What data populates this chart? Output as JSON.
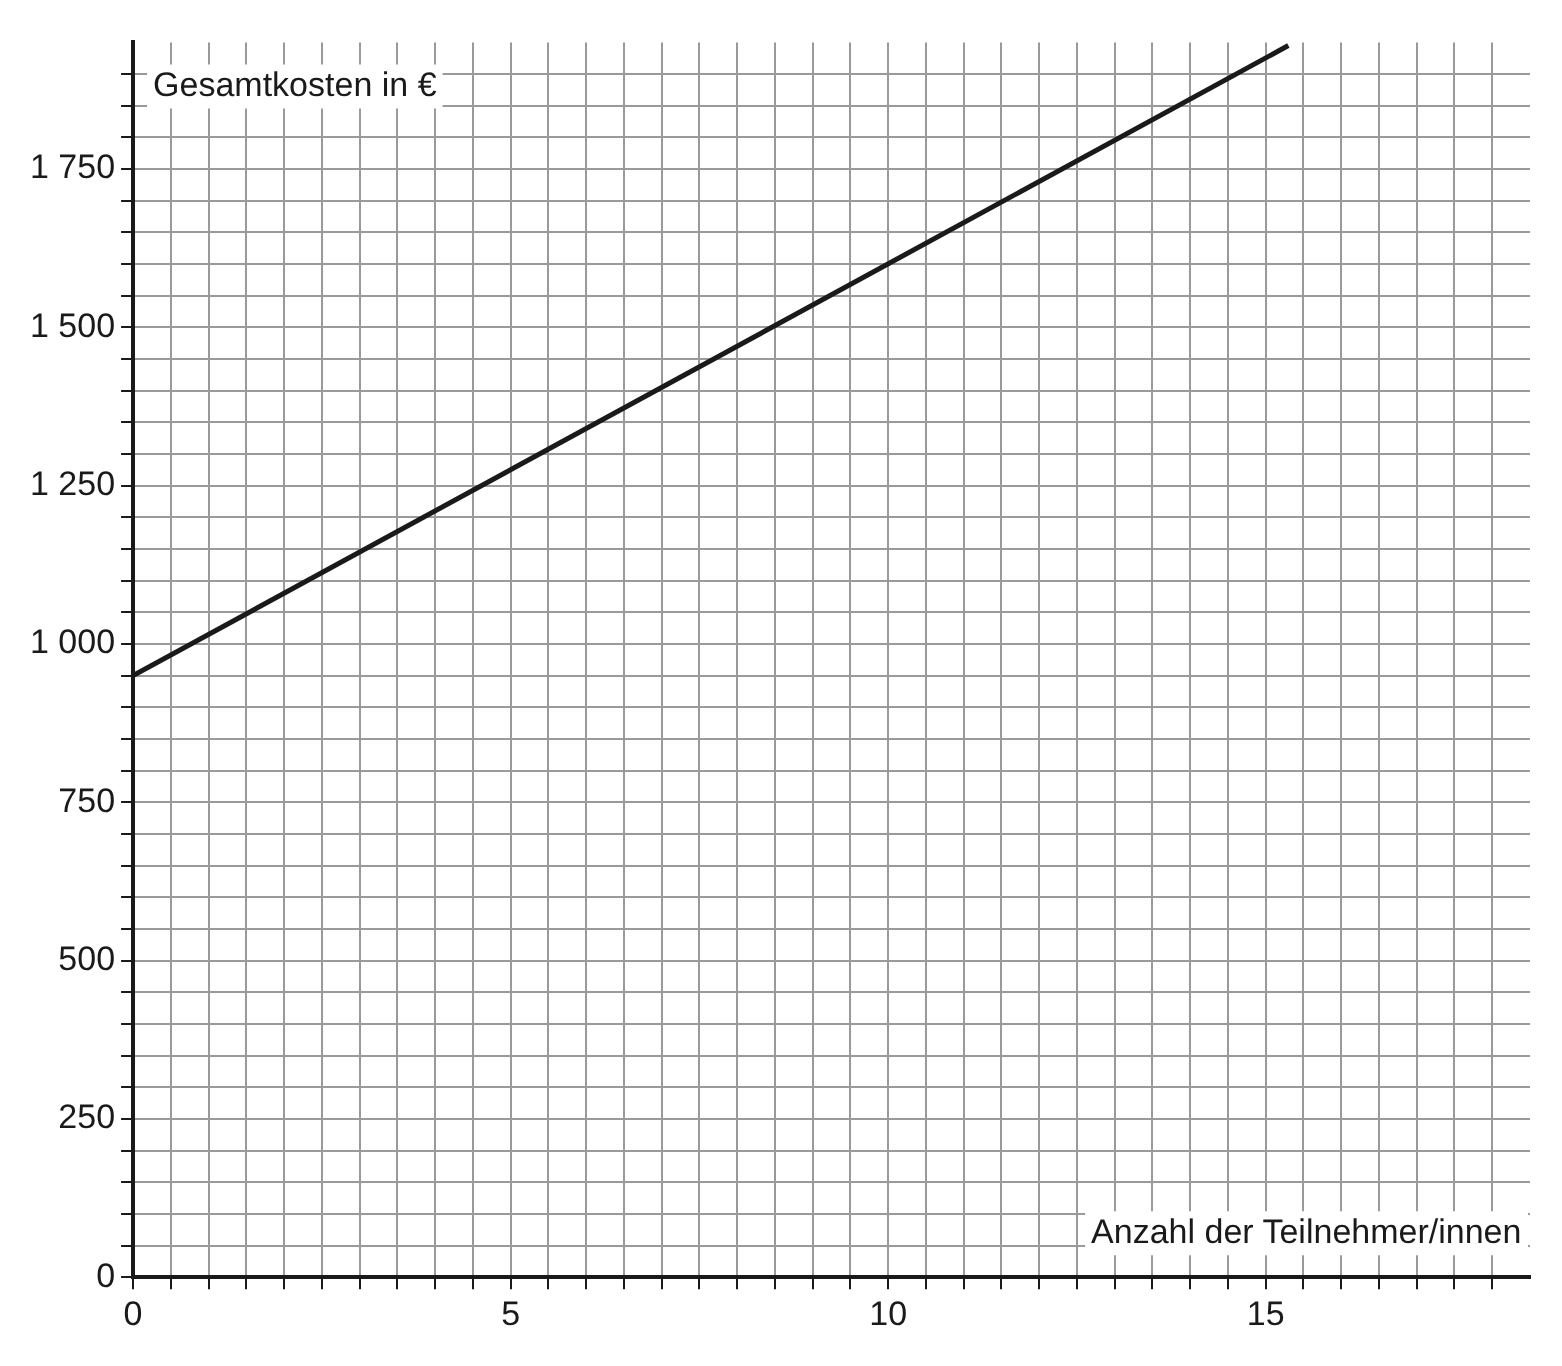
{
  "chart_data": {
    "type": "line",
    "xlabel": "Anzahl der Teilnehmer/innen",
    "ylabel": "Gesamtkosten in €",
    "series": [
      {
        "color": "#1a1a1a",
        "x": [
          0,
          15.3
        ],
        "values": [
          950,
          1945
        ]
      }
    ],
    "xlim": [
      0,
      18.5
    ],
    "ylim": [
      0,
      1950
    ],
    "xticks": [
      0,
      {
        "value": 0.5,
        "label": null
      },
      {
        "value": 1,
        "label": null
      },
      {
        "value": 1.5,
        "label": null
      },
      {
        "value": 2,
        "label": null
      },
      {
        "value": 2.5,
        "label": null
      },
      {
        "value": 3,
        "label": null
      },
      {
        "value": 3.5,
        "label": null
      },
      {
        "value": 4,
        "label": null
      },
      {
        "value": 4.5,
        "label": null
      },
      5,
      {
        "value": 5.5,
        "label": null
      },
      {
        "value": 6,
        "label": null
      },
      {
        "value": 6.5,
        "label": null
      },
      {
        "value": 7,
        "label": null
      },
      {
        "value": 7.5,
        "label": null
      },
      {
        "value": 8,
        "label": null
      },
      {
        "value": 8.5,
        "label": null
      },
      {
        "value": 9,
        "label": null
      },
      {
        "value": 9.5,
        "label": null
      },
      10,
      {
        "value": 10.5,
        "label": null
      },
      {
        "value": 11,
        "label": null
      },
      {
        "value": 11.5,
        "label": null
      },
      {
        "value": 12,
        "label": null
      },
      {
        "value": 12.5,
        "label": null
      },
      {
        "value": 13,
        "label": null
      },
      {
        "value": 13.5,
        "label": null
      },
      {
        "value": 14,
        "label": null
      },
      {
        "value": 14.5,
        "label": null
      },
      15,
      {
        "value": 15.5,
        "label": null
      },
      {
        "value": 16,
        "label": null
      },
      {
        "value": 16.5,
        "label": null
      },
      {
        "value": 17,
        "label": null
      },
      {
        "value": 17.5,
        "label": null
      },
      {
        "value": 18,
        "label": null
      }
    ],
    "yticks": [
      0,
      {
        "value": 50,
        "label": null
      },
      {
        "value": 100,
        "label": null
      },
      {
        "value": 150,
        "label": null
      },
      {
        "value": 200,
        "label": null
      },
      250,
      {
        "value": 300,
        "label": null
      },
      {
        "value": 350,
        "label": null
      },
      {
        "value": 400,
        "label": null
      },
      {
        "value": 450,
        "label": null
      },
      500,
      {
        "value": 550,
        "label": null
      },
      {
        "value": 600,
        "label": null
      },
      {
        "value": 650,
        "label": null
      },
      {
        "value": 700,
        "label": null
      },
      750,
      {
        "value": 800,
        "label": null
      },
      {
        "value": 850,
        "label": null
      },
      {
        "value": 900,
        "label": null
      },
      {
        "value": 950,
        "label": null
      },
      {
        "value": 1000,
        "label": "1 000"
      },
      {
        "value": 1050,
        "label": null
      },
      {
        "value": 1100,
        "label": null
      },
      {
        "value": 1150,
        "label": null
      },
      {
        "value": 1200,
        "label": null
      },
      {
        "value": 1250,
        "label": "1 250"
      },
      {
        "value": 1300,
        "label": null
      },
      {
        "value": 1350,
        "label": null
      },
      {
        "value": 1400,
        "label": null
      },
      {
        "value": 1450,
        "label": null
      },
      {
        "value": 1500,
        "label": "1 500"
      },
      {
        "value": 1550,
        "label": null
      },
      {
        "value": 1600,
        "label": null
      },
      {
        "value": 1650,
        "label": null
      },
      {
        "value": 1700,
        "label": null
      },
      {
        "value": 1750,
        "label": "1 750"
      },
      {
        "value": 1800,
        "label": null
      },
      {
        "value": 1850,
        "label": null
      },
      {
        "value": 1900,
        "label": null
      }
    ],
    "grid": true,
    "marker": "none",
    "line_style": "solid"
  }
}
